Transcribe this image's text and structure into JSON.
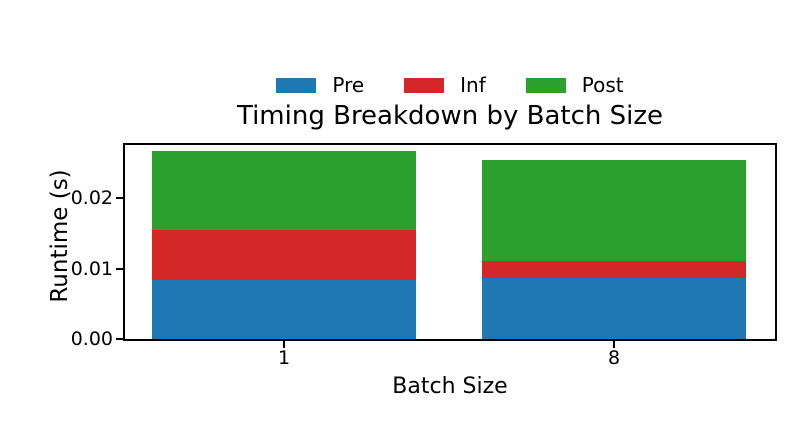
{
  "figure": {
    "title": "Timing Breakdown by Batch Size",
    "xlabel": "Batch Size",
    "ylabel": "Runtime (s)"
  },
  "chart_data": {
    "type": "bar",
    "stacked": true,
    "title": "Timing Breakdown by Batch Size",
    "xlabel": "Batch Size",
    "ylabel": "Runtime (s)",
    "categories": [
      "1",
      "8"
    ],
    "series": [
      {
        "name": "Pre",
        "color": "#1f77b4",
        "values": [
          0.0083,
          0.0086
        ]
      },
      {
        "name": "Inf",
        "color": "#d62728",
        "values": [
          0.0071,
          0.0025
        ]
      },
      {
        "name": "Post",
        "color": "#2ca02c",
        "values": [
          0.0112,
          0.0143
        ]
      }
    ],
    "yticks": [
      {
        "value": 0.0,
        "label": "0.00"
      },
      {
        "value": 0.01,
        "label": "0.01"
      },
      {
        "value": 0.02,
        "label": "0.02"
      }
    ],
    "ylim": [
      0,
      0.0275
    ],
    "grid": false,
    "legend_position": "above-title",
    "spines": "boxed",
    "colors": {
      "axes": "#000000",
      "background": "#ffffff"
    }
  }
}
